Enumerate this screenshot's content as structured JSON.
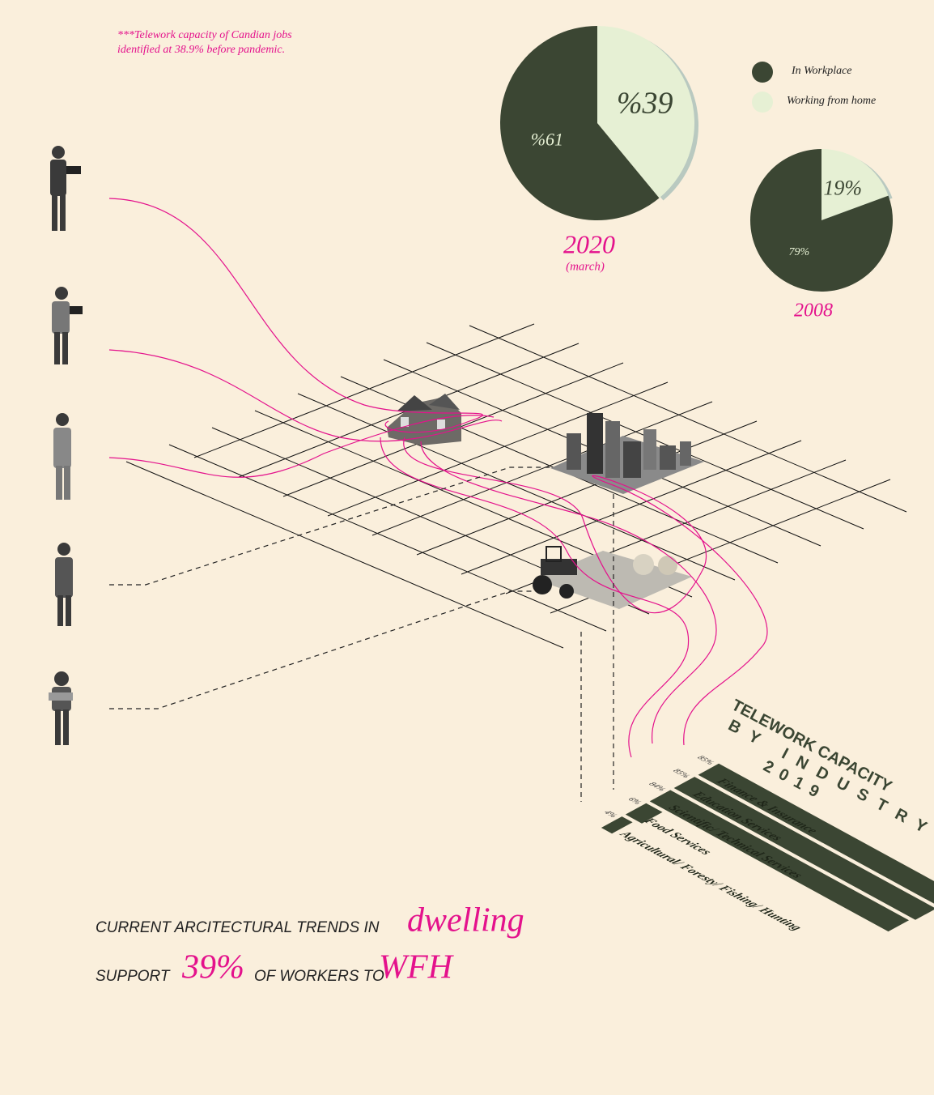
{
  "note": [
    "***Telework capacity of Candian jobs",
    "identified at 38.9% before pandemic."
  ],
  "headline": {
    "line1_text": "CURRENT ARCITECTURAL TRENDS IN",
    "line1_emph": "dwelling",
    "line2_text_a": "SUPPORT",
    "line2_emph_a": "39%",
    "line2_text_b": "OF WORKERS TO",
    "line2_emph_b": "WFH"
  },
  "chart_data": [
    {
      "type": "pie",
      "title": "2020",
      "subtitle": "(march)",
      "categories": [
        "In Workplace",
        "Working from home"
      ],
      "values": [
        61,
        39
      ],
      "value_labels": [
        "%61",
        "%39"
      ],
      "colors": [
        "#3b4633",
        "#e6f0d4"
      ]
    },
    {
      "type": "pie",
      "title": "2008",
      "values": [
        79,
        19
      ],
      "value_labels": [
        "79%",
        "19%"
      ],
      "colors": [
        "#3b4633",
        "#e6f0d4"
      ]
    },
    {
      "type": "bar",
      "title": "TELEWORK CAPACITY",
      "subtitle": "BY INDUSTRY",
      "year": "2019",
      "categories": [
        "Agricultural/ Foresty/ Fishing/ Hunting",
        "Food Services",
        "Scientific/ Technical Services",
        "Education Services",
        "Finance & Insurance"
      ],
      "values": [
        4,
        6,
        84,
        85,
        85
      ],
      "value_labels": [
        "4%",
        "6%",
        "84%",
        "85%",
        "85%"
      ],
      "color": "#3b4633"
    }
  ]
}
